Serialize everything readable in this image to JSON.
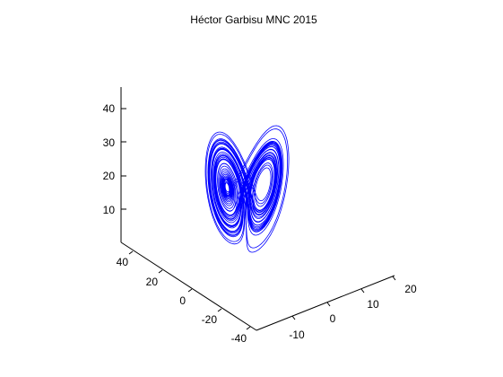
{
  "chart_data": {
    "type": "line",
    "title": "Héctor Garbisu MNC 2015",
    "projection": "3d",
    "grid": false,
    "axes": {
      "z": {
        "ticks": [
          "10",
          "20",
          "30",
          "40"
        ]
      },
      "x": {
        "ticks": [
          "40",
          "20",
          "0",
          "-20",
          "-40"
        ]
      },
      "y": {
        "ticks": [
          "-10",
          "0",
          "10",
          "20"
        ]
      }
    },
    "series": [
      {
        "line_color": "#0000ff"
      }
    ]
  }
}
